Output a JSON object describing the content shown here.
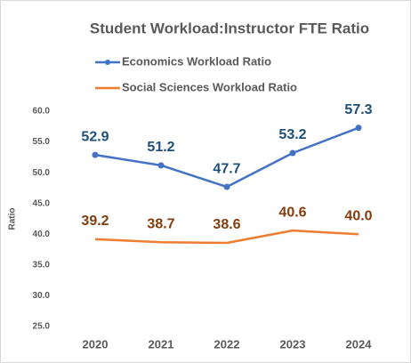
{
  "chart_data": {
    "type": "line",
    "title": "Student Workload:Instructor FTE Ratio",
    "y_label": "Ratio",
    "categories": [
      "2020",
      "2021",
      "2022",
      "2023",
      "2024"
    ],
    "series": [
      {
        "name": "Economics Workload Ratio",
        "color": "#4472c4",
        "label_color": "#1f4e79",
        "marker": true,
        "values": [
          52.9,
          51.2,
          47.7,
          53.2,
          57.3
        ],
        "value_labels": [
          "52.9",
          "51.2",
          "47.7",
          "53.2",
          "57.3"
        ]
      },
      {
        "name": "Social Sciences Workload Ratio",
        "color": "#ed7d31",
        "label_color": "#843c0c",
        "marker": false,
        "values": [
          39.2,
          38.7,
          38.6,
          40.6,
          40.0
        ],
        "value_labels": [
          "39.2",
          "38.7",
          "38.6",
          "40.6",
          "40.0"
        ]
      }
    ],
    "ylim": [
      25,
      60
    ],
    "yticks": [
      {
        "value": 25,
        "label": "25.0"
      },
      {
        "value": 30,
        "label": "30.0"
      },
      {
        "value": 35,
        "label": "35.0"
      },
      {
        "value": 40,
        "label": "40.0"
      },
      {
        "value": 45,
        "label": "45.0"
      },
      {
        "value": 50,
        "label": "50.0"
      },
      {
        "value": 55,
        "label": "55.0"
      },
      {
        "value": 60,
        "label": "60.0"
      }
    ],
    "grid": false
  }
}
